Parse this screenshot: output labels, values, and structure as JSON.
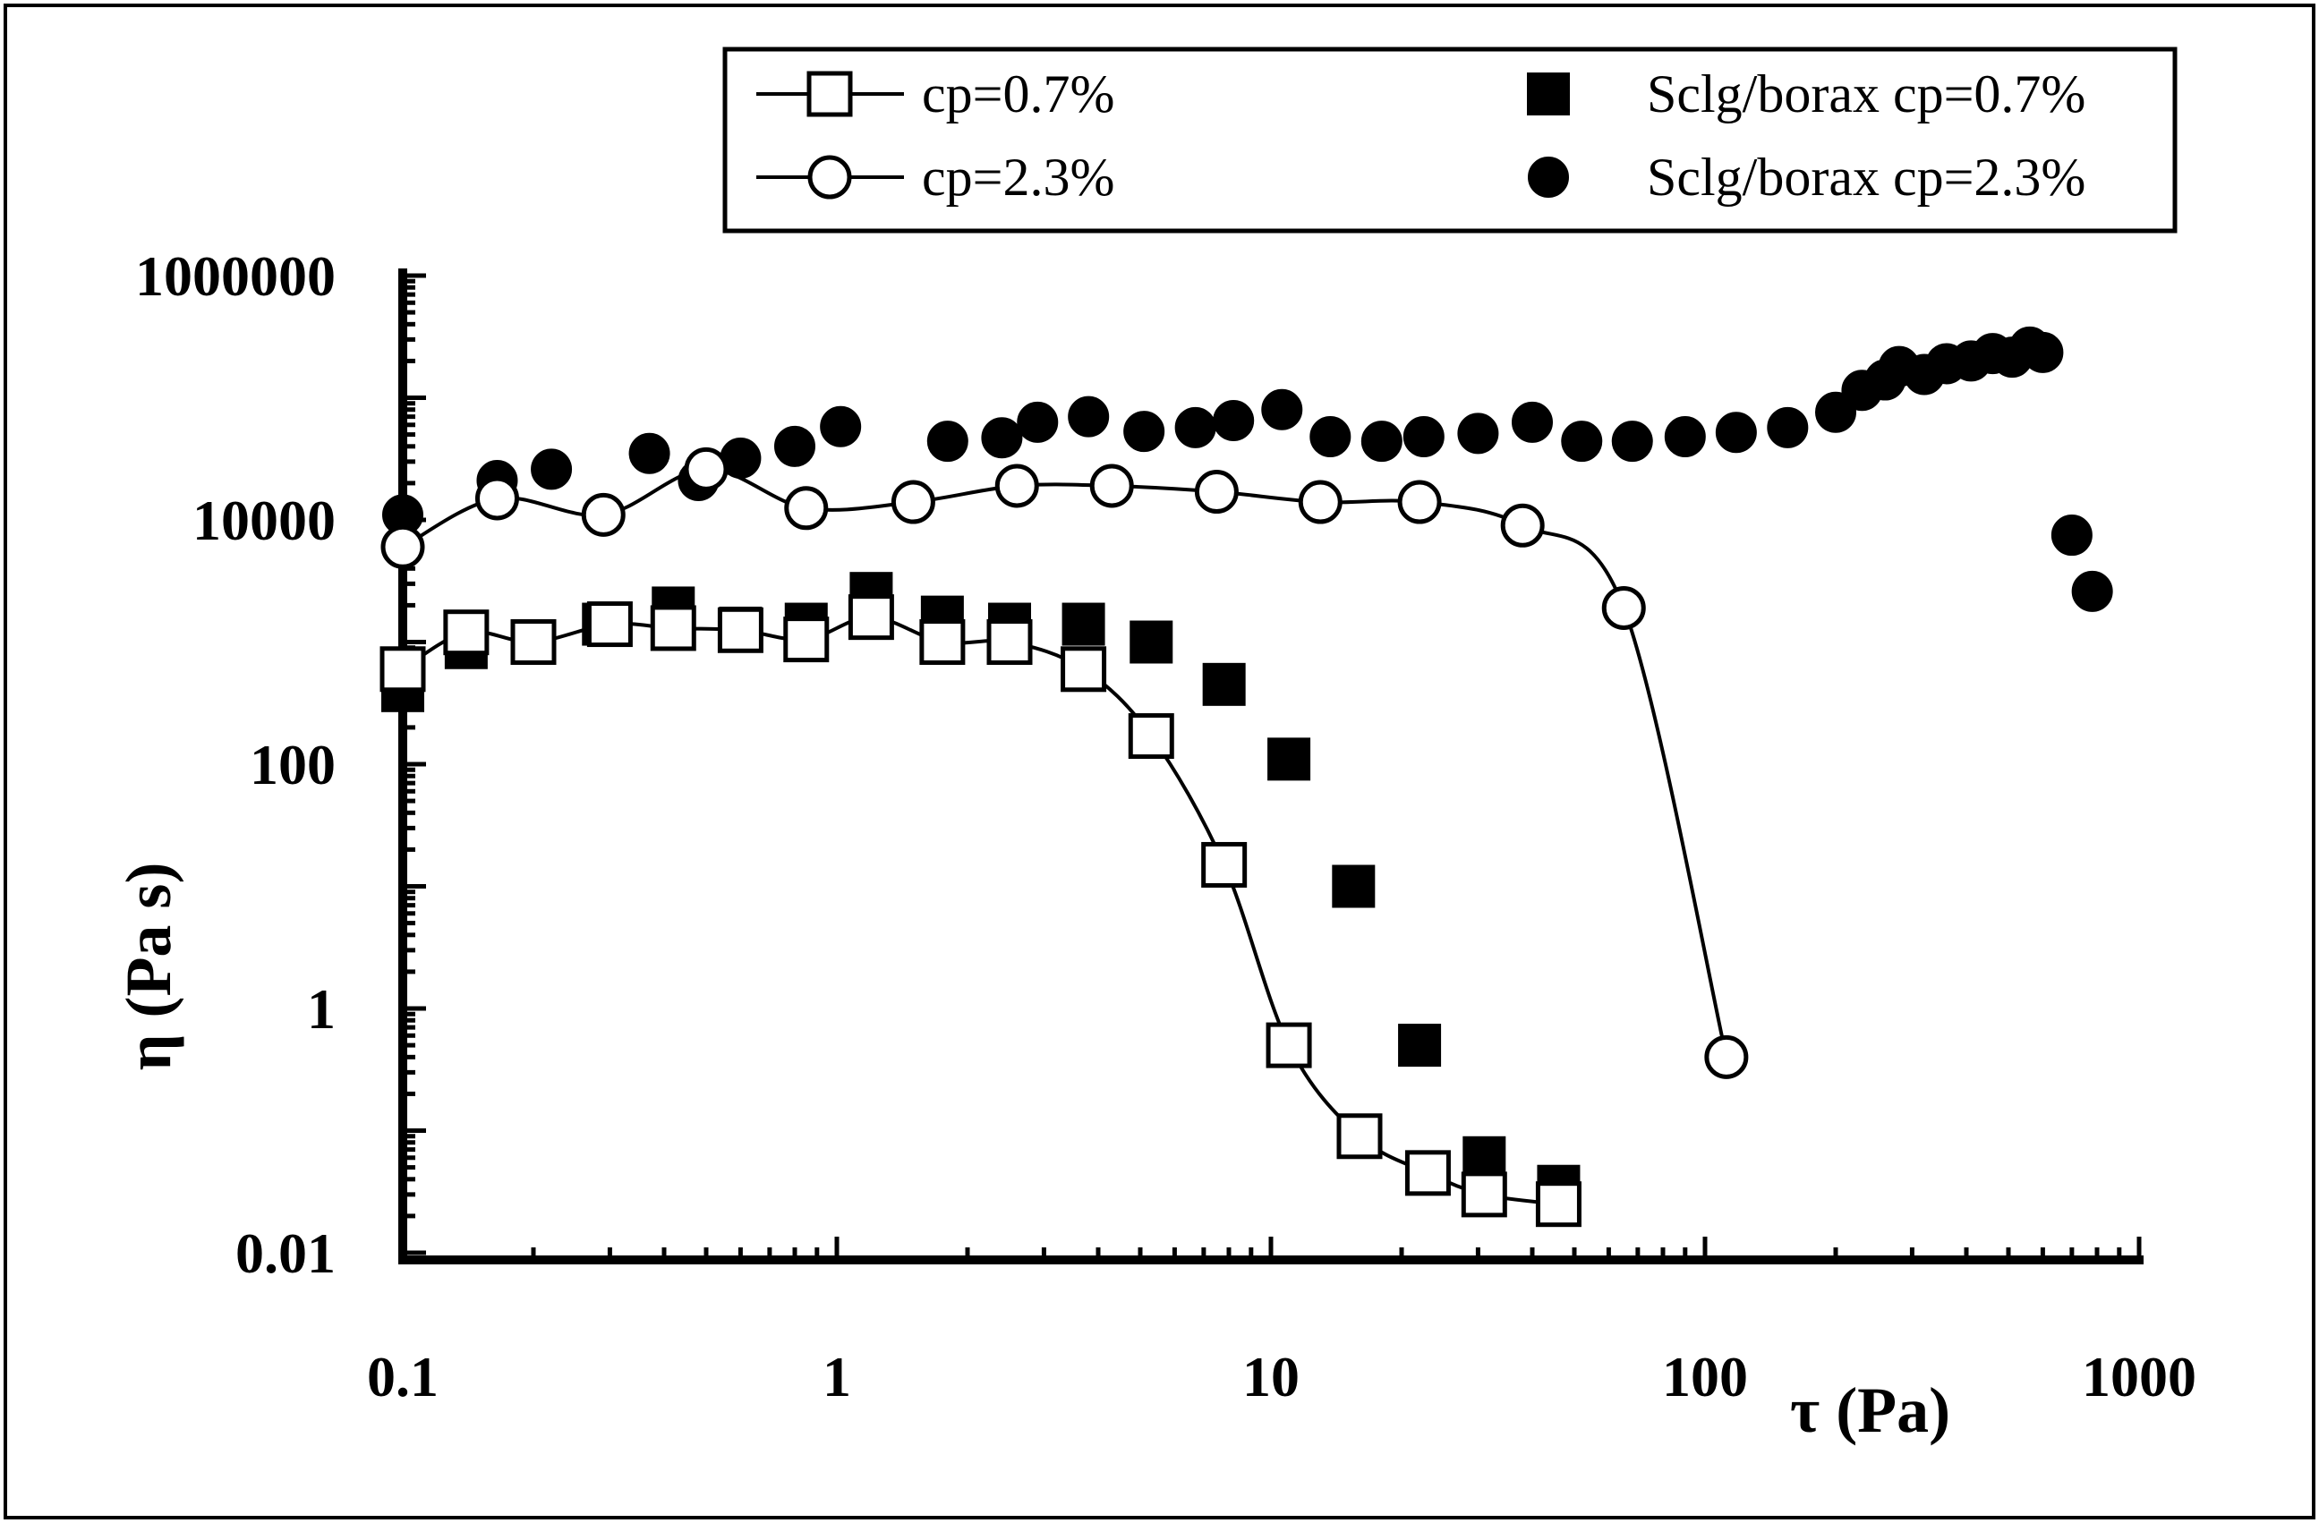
{
  "chart_data": {
    "type": "scatter",
    "xscale": "log",
    "yscale": "log",
    "xlabel": "τ (Pa)",
    "ylabel": "η (Pa s)",
    "xlim": [
      0.1,
      1000
    ],
    "ylim": [
      0.01,
      1000000
    ],
    "xticklabels": [
      "0.1",
      "1",
      "10",
      "100",
      "1000"
    ],
    "yticklabels": [
      "0.01",
      "1",
      "100",
      "10000",
      "1000000"
    ],
    "legend_position": "top-right",
    "series": [
      {
        "name": "cp=0.7%",
        "marker": "open-square",
        "line": true,
        "points": [
          [
            0.1,
            600
          ],
          [
            0.14,
            1200
          ],
          [
            0.2,
            1000
          ],
          [
            0.3,
            1400
          ],
          [
            0.42,
            1300
          ],
          [
            0.6,
            1250
          ],
          [
            0.85,
            1050
          ],
          [
            1.2,
            1600
          ],
          [
            1.75,
            1000
          ],
          [
            2.5,
            1000
          ],
          [
            3.7,
            600
          ],
          [
            5.3,
            170
          ],
          [
            7.8,
            15
          ],
          [
            11,
            0.5
          ],
          [
            16,
            0.09
          ],
          [
            23,
            0.045
          ],
          [
            31,
            0.03
          ],
          [
            46,
            0.025
          ]
        ]
      },
      {
        "name": "cp=2.3%",
        "marker": "open-circle",
        "line": true,
        "points": [
          [
            0.1,
            6000
          ],
          [
            0.165,
            15000
          ],
          [
            0.29,
            11000
          ],
          [
            0.5,
            26000
          ],
          [
            0.85,
            12500
          ],
          [
            1.5,
            14000
          ],
          [
            2.6,
            19000
          ],
          [
            4.3,
            19000
          ],
          [
            7.5,
            17000
          ],
          [
            13,
            14000
          ],
          [
            22,
            14000
          ],
          [
            38,
            9000
          ],
          [
            65,
            1900
          ],
          [
            112,
            0.4
          ]
        ]
      },
      {
        "name": "Sclg/borax cp=0.7%",
        "marker": "filled-square",
        "line": false,
        "points": [
          [
            0.1,
            400
          ],
          [
            0.14,
            900
          ],
          [
            0.2,
            1000
          ],
          [
            0.29,
            1400
          ],
          [
            0.42,
            1900
          ],
          [
            0.6,
            1300
          ],
          [
            0.85,
            1400
          ],
          [
            1.2,
            2500
          ],
          [
            1.75,
            1600
          ],
          [
            2.5,
            1400
          ],
          [
            3.7,
            1400
          ],
          [
            5.3,
            1000
          ],
          [
            7.8,
            450
          ],
          [
            11,
            110
          ],
          [
            15.5,
            10
          ],
          [
            22,
            0.5
          ],
          [
            31,
            0.06
          ],
          [
            46,
            0.035
          ]
        ]
      },
      {
        "name": "Sclg/borax cp=2.3%",
        "marker": "filled-circle",
        "line": false,
        "points": [
          [
            0.1,
            11000
          ],
          [
            0.165,
            21000
          ],
          [
            0.22,
            26000
          ],
          [
            0.37,
            35000
          ],
          [
            0.48,
            21000
          ],
          [
            0.6,
            32000
          ],
          [
            0.8,
            40000
          ],
          [
            1.02,
            58000
          ],
          [
            1.8,
            44000
          ],
          [
            2.4,
            47000
          ],
          [
            2.9,
            63000
          ],
          [
            3.8,
            70000
          ],
          [
            5.1,
            53000
          ],
          [
            6.7,
            57000
          ],
          [
            8.2,
            65000
          ],
          [
            10.6,
            80000
          ],
          [
            13.7,
            48000
          ],
          [
            18,
            44000
          ],
          [
            22.5,
            48000
          ],
          [
            30,
            51000
          ],
          [
            40,
            63000
          ],
          [
            52,
            44000
          ],
          [
            68,
            44000
          ],
          [
            90,
            48000
          ],
          [
            118,
            52000
          ],
          [
            155,
            57000
          ],
          [
            200,
            76000
          ],
          [
            230,
            115000
          ],
          [
            260,
            140000
          ],
          [
            280,
            180000
          ],
          [
            320,
            155000
          ],
          [
            360,
            190000
          ],
          [
            410,
            200000
          ],
          [
            460,
            230000
          ],
          [
            510,
            215000
          ],
          [
            560,
            260000
          ],
          [
            600,
            235000
          ],
          [
            700,
            7500
          ],
          [
            780,
            2600
          ]
        ]
      }
    ]
  },
  "legend": {
    "entries": [
      "cp=0.7%",
      "Sclg/borax cp=0.7%",
      "cp=2.3%",
      "Sclg/borax cp=2.3%"
    ]
  }
}
